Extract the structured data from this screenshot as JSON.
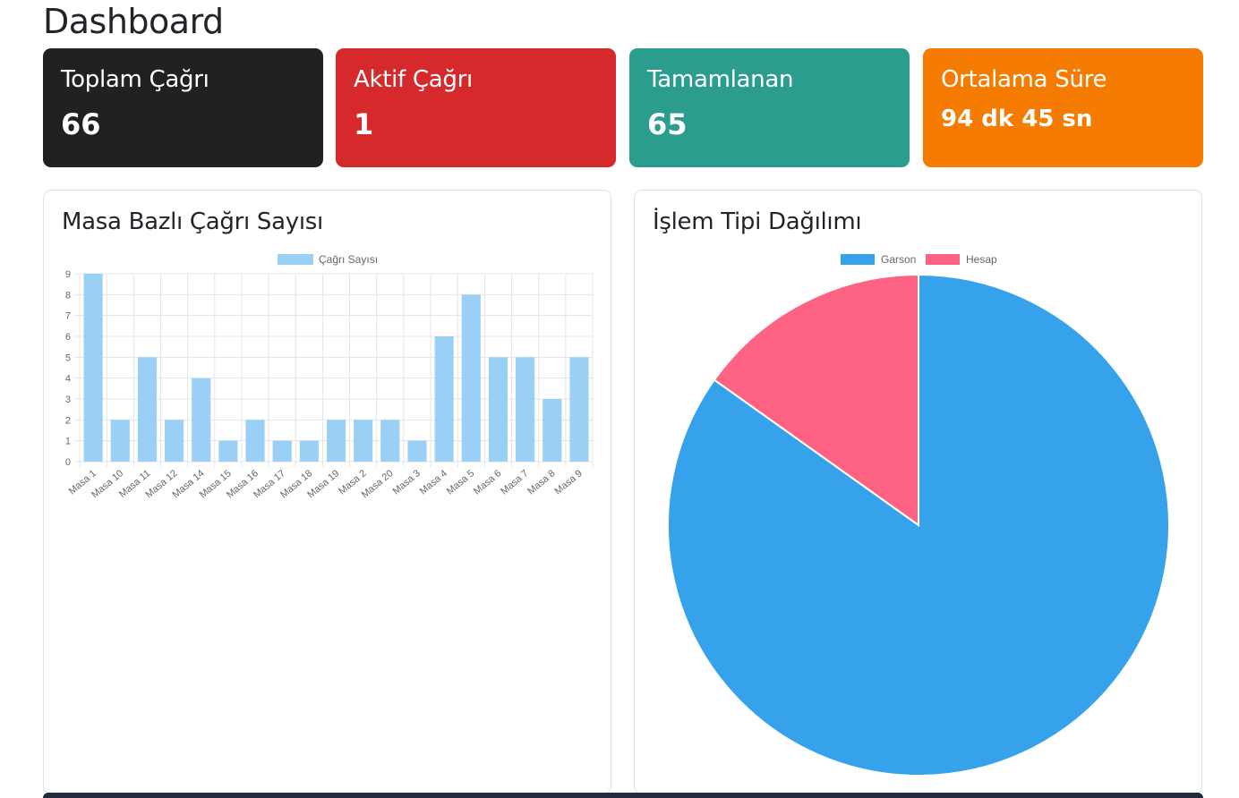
{
  "page": {
    "title": "Dashboard"
  },
  "cards": [
    {
      "label": "Toplam Çağrı",
      "value": "66",
      "color": "#212121"
    },
    {
      "label": "Aktif Çağrı",
      "value": "1",
      "color": "#d6292c"
    },
    {
      "label": "Tamamlanan",
      "value": "65",
      "color": "#2a9d8f"
    },
    {
      "label": "Ortalama Süre",
      "value": "94 dk 45 sn",
      "color": "#f57c00"
    }
  ],
  "bar_panel": {
    "title": "Masa Bazlı Çağrı Sayısı"
  },
  "pie_panel": {
    "title": "İşlem Tipi Dağılımı"
  },
  "chart_data": [
    {
      "type": "bar",
      "categories": [
        "Masa 1",
        "Masa 10",
        "Masa 11",
        "Masa 12",
        "Masa 14",
        "Masa 15",
        "Masa 16",
        "Masa 17",
        "Masa 18",
        "Masa 19",
        "Masa 2",
        "Masa 20",
        "Masa 3",
        "Masa 4",
        "Masa 5",
        "Masa 6",
        "Masa 7",
        "Masa 8",
        "Masa 9"
      ],
      "series": [
        {
          "name": "Çağrı Sayısı",
          "values": [
            9,
            2,
            5,
            2,
            4,
            1,
            2,
            1,
            1,
            2,
            2,
            2,
            1,
            6,
            8,
            5,
            5,
            3,
            5
          ],
          "color": "#9ad0f5"
        }
      ],
      "ylim": [
        0,
        9
      ],
      "yticks": [
        0,
        1,
        2,
        3,
        4,
        5,
        6,
        7,
        8,
        9
      ],
      "grid": true,
      "legend": "top-center"
    },
    {
      "type": "pie",
      "labels": [
        "Garson",
        "Hesap"
      ],
      "values": [
        56,
        10
      ],
      "colors": [
        "#36a2eb",
        "#ff6384"
      ],
      "legend": "top-center"
    }
  ]
}
